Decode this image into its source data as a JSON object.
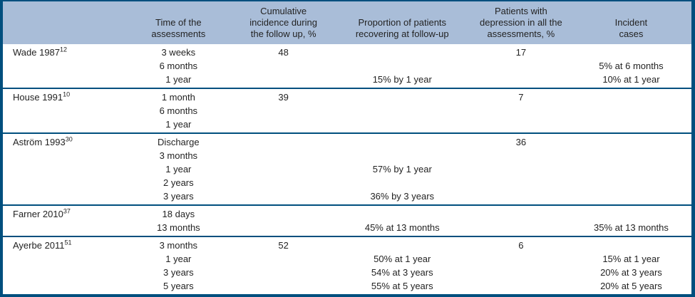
{
  "colors": {
    "frame": "#004f7e",
    "header_bg": "#a9bdd8",
    "text": "#232323"
  },
  "table": {
    "header": {
      "study": "",
      "time": "Time of the assessments",
      "cumulative": "Cumulative incidence during the follow up, %",
      "proportion": "Proportion of patients recovering at follow-up",
      "depression": "Patients with depression in all the assessments, %",
      "incident": "Incident cases"
    },
    "rows": [
      {
        "study": "Wade 1987",
        "ref": "12",
        "cells": {
          "time": [
            "3 weeks",
            "6 months",
            "1 year"
          ],
          "cumulative": [
            "48",
            "",
            ""
          ],
          "proportion": [
            "",
            "",
            "15% by 1 year"
          ],
          "depression": [
            "17",
            "",
            ""
          ],
          "incident": [
            "",
            "5% at 6 months",
            "10% at 1 year"
          ]
        }
      },
      {
        "study": "House 1991",
        "ref": "10",
        "cells": {
          "time": [
            "1 month",
            "6 months",
            "1 year"
          ],
          "cumulative": [
            "39",
            "",
            ""
          ],
          "proportion": [
            "",
            "",
            ""
          ],
          "depression": [
            "7",
            "",
            ""
          ],
          "incident": [
            "",
            "",
            ""
          ]
        }
      },
      {
        "study": "Aström 1993",
        "ref": "30",
        "cells": {
          "time": [
            "Discharge",
            "3 months",
            "1 year",
            "2 years",
            "3 years"
          ],
          "cumulative": [
            "",
            "",
            "",
            "",
            ""
          ],
          "proportion": [
            "",
            "",
            "57% by 1 year",
            "",
            "36% by 3 years"
          ],
          "depression": [
            "36",
            "",
            "",
            "",
            ""
          ],
          "incident": [
            "",
            "",
            "",
            "",
            ""
          ]
        }
      },
      {
        "study": "Farner 2010",
        "ref": "37",
        "cells": {
          "time": [
            "18 days",
            "13 months"
          ],
          "cumulative": [
            "",
            ""
          ],
          "proportion": [
            "",
            "45% at 13 months"
          ],
          "depression": [
            "",
            ""
          ],
          "incident": [
            "",
            "35% at 13 months"
          ]
        }
      },
      {
        "study": "Ayerbe 2011",
        "ref": "51",
        "cells": {
          "time": [
            "3 months",
            "1 year",
            "3 years",
            "5 years"
          ],
          "cumulative": [
            "52",
            "",
            "",
            ""
          ],
          "proportion": [
            "",
            "50% at 1 year",
            "54% at 3 years",
            "55% at 5 years"
          ],
          "depression": [
            "6",
            "",
            "",
            ""
          ],
          "incident": [
            "",
            "15% at 1 year",
            "20% at 3 years",
            "20% at 5 years"
          ]
        }
      }
    ]
  }
}
